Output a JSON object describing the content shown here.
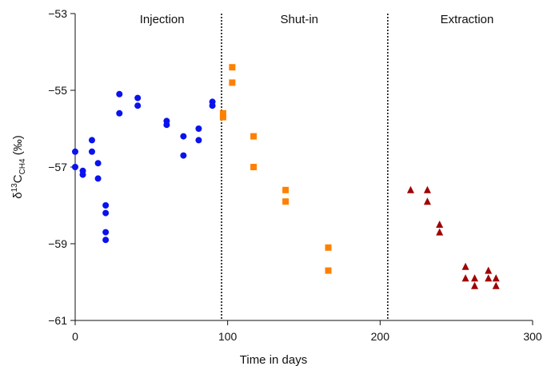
{
  "chart_data": {
    "type": "scatter",
    "title": "",
    "xlabel": "Time in days",
    "ylabel": {
      "prefix": "δ",
      "sup": "13",
      "main": "C",
      "sub": "CH4",
      "suffix": " (‰)"
    },
    "xlim": [
      0,
      300
    ],
    "ylim": [
      -61,
      -53
    ],
    "xticks": [
      0,
      100,
      200,
      300
    ],
    "yticks": [
      -61,
      -59,
      -57,
      -55,
      -53
    ],
    "ytick_labels": [
      "−61",
      "−59",
      "−57",
      "−55",
      "−53"
    ],
    "grid": false,
    "legend": "none",
    "phase_dividers": [
      96,
      205
    ],
    "phases": [
      {
        "label": "Injection",
        "x_center": 57
      },
      {
        "label": "Shut-in",
        "x_center": 147
      },
      {
        "label": "Extraction",
        "x_center": 257
      }
    ],
    "series": [
      {
        "marker": "circle",
        "color": "#0a12ee",
        "points": [
          [
            0,
            -56.6
          ],
          [
            0,
            -57.0
          ],
          [
            5,
            -57.1
          ],
          [
            5,
            -57.2
          ],
          [
            11,
            -56.3
          ],
          [
            11,
            -56.6
          ],
          [
            15,
            -56.9
          ],
          [
            15,
            -57.3
          ],
          [
            20,
            -58.0
          ],
          [
            20,
            -58.2
          ],
          [
            20,
            -58.7
          ],
          [
            20,
            -58.9
          ],
          [
            29,
            -55.1
          ],
          [
            29,
            -55.6
          ],
          [
            41,
            -55.2
          ],
          [
            41,
            -55.4
          ],
          [
            60,
            -55.8
          ],
          [
            60,
            -55.9
          ],
          [
            71,
            -56.2
          ],
          [
            71,
            -56.7
          ],
          [
            81,
            -56.0
          ],
          [
            81,
            -56.3
          ],
          [
            90,
            -55.3
          ],
          [
            90,
            -55.4
          ]
        ]
      },
      {
        "marker": "square",
        "color": "#ff8000",
        "points": [
          [
            97,
            -55.6
          ],
          [
            97,
            -55.7
          ],
          [
            103,
            -54.4
          ],
          [
            103,
            -54.8
          ],
          [
            117,
            -56.2
          ],
          [
            117,
            -57.0
          ],
          [
            138,
            -57.6
          ],
          [
            138,
            -57.9
          ],
          [
            166,
            -59.1
          ],
          [
            166,
            -59.7
          ]
        ]
      },
      {
        "marker": "triangle",
        "color": "#a00000",
        "points": [
          [
            220,
            -57.6
          ],
          [
            231,
            -57.6
          ],
          [
            231,
            -57.9
          ],
          [
            239,
            -58.5
          ],
          [
            239,
            -58.7
          ],
          [
            256,
            -59.6
          ],
          [
            256,
            -59.9
          ],
          [
            262,
            -59.9
          ],
          [
            262,
            -60.1
          ],
          [
            271,
            -59.7
          ],
          [
            271,
            -59.9
          ],
          [
            276,
            -59.9
          ],
          [
            276,
            -60.1
          ]
        ]
      }
    ]
  }
}
